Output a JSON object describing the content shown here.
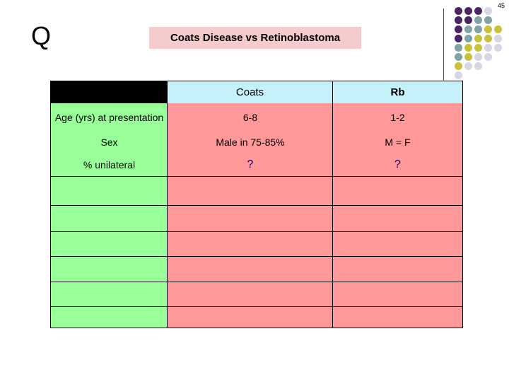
{
  "page_number": "45",
  "q_mark": "Q",
  "title": "Coats Disease vs Retinoblastoma",
  "decor_colors": {
    "purple": "#4b2468",
    "teal": "#7ea3a8",
    "olive": "#c8c23a",
    "lavender": "#d6d6e4"
  },
  "table": {
    "headers": [
      "",
      "Coats",
      "Rb"
    ],
    "rows": [
      {
        "label": "Age (yrs) at presentation",
        "coats": "6-8",
        "rb": "1-2"
      },
      {
        "label": "Sex",
        "coats": "Male in 75-85%",
        "rb": "M = F"
      },
      {
        "label": "% unilateral",
        "coats": "?",
        "rb": "?"
      }
    ],
    "empty_rows": 5,
    "colors": {
      "label_col": "#99ff99",
      "value_cols": "#ff9999",
      "header": "#c5f1fa",
      "corner": "#000000"
    }
  }
}
